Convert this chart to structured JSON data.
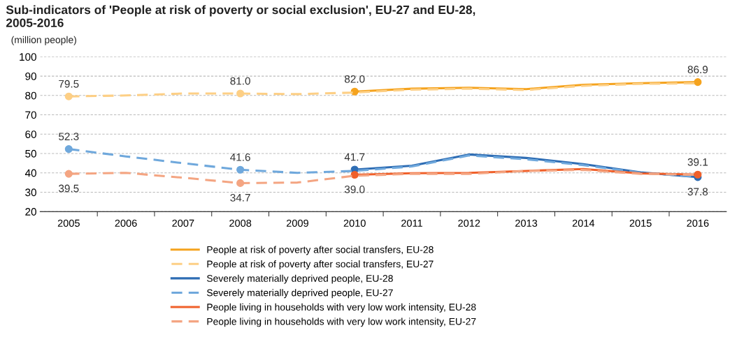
{
  "chart_data": {
    "type": "line",
    "title": "Sub-indicators of 'People at risk of poverty or social exclusion', EU-27 and EU-28,\n2005-2016",
    "subtitle": "(million people)",
    "categories": [
      "2005",
      "2006",
      "2007",
      "2008",
      "2009",
      "2010",
      "2011",
      "2012",
      "2013",
      "2014",
      "2015",
      "2016"
    ],
    "ylim": [
      20,
      100
    ],
    "yticks": [
      20,
      30,
      40,
      50,
      60,
      70,
      80,
      90,
      100
    ],
    "grid": "y",
    "legend": "bottom",
    "series": [
      {
        "name": "People at risk of poverty after social transfers, EU-28",
        "color": "#f5a31e",
        "line_style": "solid",
        "values": [
          null,
          null,
          null,
          null,
          null,
          82.0,
          83.5,
          84.0,
          83.3,
          85.5,
          86.3,
          86.9
        ],
        "value_labels": [
          null,
          null,
          null,
          null,
          null,
          "82.0",
          null,
          null,
          null,
          null,
          null,
          "86.9"
        ]
      },
      {
        "name": "People at risk of poverty after social transfers, EU-27",
        "color": "#fdcf85",
        "line_style": "dashed",
        "values": [
          79.5,
          80.0,
          81.0,
          81.0,
          80.7,
          81.5,
          83.0,
          83.5,
          82.8,
          85.0,
          86.0,
          86.3
        ],
        "value_labels": [
          "79.5",
          null,
          null,
          "81.0",
          null,
          null,
          null,
          null,
          null,
          null,
          null,
          null
        ]
      },
      {
        "name": "Severely materially deprived people, EU-28",
        "color": "#2e6db4",
        "line_style": "solid",
        "values": [
          null,
          null,
          null,
          null,
          null,
          41.7,
          43.7,
          49.5,
          47.7,
          44.5,
          40.3,
          37.8
        ],
        "value_labels": [
          null,
          null,
          null,
          null,
          null,
          "41.7",
          null,
          null,
          null,
          null,
          null,
          "37.8"
        ]
      },
      {
        "name": "Severely materially deprived people, EU-27",
        "color": "#6fa8dc",
        "line_style": "dashed",
        "values": [
          52.3,
          48.5,
          45.0,
          41.6,
          40.0,
          41.0,
          43.3,
          49.0,
          47.0,
          44.0,
          40.0,
          38.0
        ],
        "value_labels": [
          "52.3",
          null,
          null,
          "41.6",
          null,
          null,
          null,
          null,
          null,
          null,
          null,
          null
        ]
      },
      {
        "name": "People living in households with very low work intensity, EU-28",
        "color": "#f0602a",
        "line_style": "solid",
        "values": [
          null,
          null,
          null,
          null,
          null,
          39.0,
          39.8,
          40.0,
          41.0,
          42.0,
          39.7,
          39.1
        ],
        "value_labels": [
          null,
          null,
          null,
          null,
          null,
          "39.0",
          null,
          null,
          null,
          null,
          null,
          "39.1"
        ]
      },
      {
        "name": "People living in households with very low work intensity, EU-27",
        "color": "#f4a582",
        "line_style": "dashed",
        "values": [
          39.5,
          40.0,
          37.5,
          34.7,
          35.0,
          38.5,
          39.5,
          39.5,
          41.0,
          41.5,
          39.5,
          39.0
        ],
        "value_labels": [
          "39.5",
          null,
          null,
          "34.7",
          null,
          null,
          null,
          null,
          null,
          null,
          null,
          null
        ]
      }
    ]
  }
}
